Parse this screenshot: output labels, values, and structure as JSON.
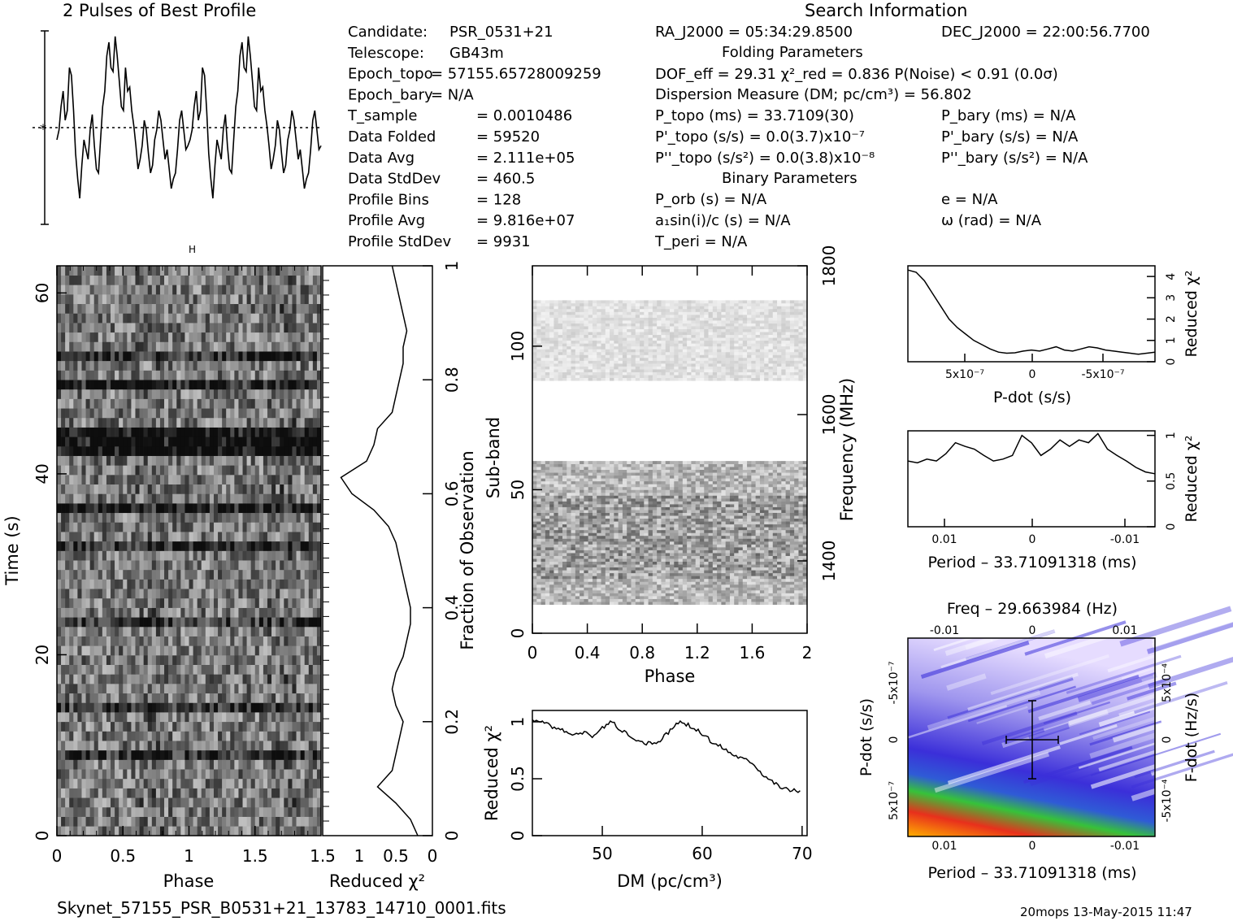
{
  "title_profile": "2 Pulses of Best Profile",
  "title_search": "Search Information",
  "title_folding": "Folding Parameters",
  "title_binary": "Binary Parameters",
  "info_left": [
    {
      "label": "Candidate:",
      "value": "PSR_0531+21"
    },
    {
      "label": "Telescope:",
      "value": "GB43m"
    },
    {
      "label": "Epoch_topo",
      "value": "= 57155.65728009259"
    },
    {
      "label": "Epoch_bary",
      "value": "= N/A"
    },
    {
      "label": "T_sample",
      "value": "0.0010486"
    },
    {
      "label": "Data Folded",
      "value": "59520"
    },
    {
      "label": "Data Avg",
      "value": "2.111e+05"
    },
    {
      "label": "Data StdDev",
      "value": "460.5"
    },
    {
      "label": "Profile Bins",
      "value": "128"
    },
    {
      "label": "Profile Avg",
      "value": "9.816e+07"
    },
    {
      "label": "Profile StdDev",
      "value": "9931"
    }
  ],
  "info_mid": {
    "ra": "RA_J2000 = 05:34:29.8500",
    "dof": "DOF_eff = 29.31  χ²_red = 0.836  P(Noise) < 0.91  (0.0σ)",
    "dm": "Dispersion Measure (DM; pc/cm³) = 56.802",
    "p_topo": "P_topo (ms) = 33.7109(30)",
    "pd_topo": "P'_topo (s/s) = 0.0(3.7)x10⁻⁷",
    "pdd_topo": "P''_topo (s/s²) = 0.0(3.8)x10⁻⁸",
    "p_orb": "P_orb (s) = N/A",
    "a1": "a₁sin(i)/c (s) = N/A",
    "t_peri": "T_peri = N/A"
  },
  "info_right": {
    "dec": "DEC_J2000 = 22:00:56.7700",
    "p_bary": "P_bary (ms) = N/A",
    "pd_bary": "P'_bary (s/s) = N/A",
    "pdd_bary": "P''_bary (s/s²) = N/A",
    "e": "e = N/A",
    "omega": "ω (rad) = N/A"
  },
  "labels": {
    "phase": "Phase",
    "time": "Time (s)",
    "reduced_chi2": "Reduced χ²",
    "fraction": "Fraction of Observation",
    "subband": "Sub-band",
    "frequency": "Frequency (MHz)",
    "dm_axis": "DM (pc/cm³)",
    "pdot": "P-dot (s/s)",
    "period_offset": "Period – 33.71091318 (ms)",
    "freq_title": "Freq – 29.663984 (Hz)",
    "fdot": "F-dot (Hz/s)"
  },
  "footer": {
    "filename": "Skynet_57155_PSR_B0531+21_13783_14710_0001.fits",
    "stamp": "20mops 13-May-2015 11:47"
  },
  "colors": {
    "ppdot_low": "#3b2fd9",
    "ppdot_mid": "#c9c0f0",
    "ppdot_high": "#e8301c",
    "greyscale_dark": "#111111"
  },
  "chart_data": [
    {
      "type": "line",
      "name": "profile",
      "xlabel": "",
      "ylabel": "",
      "x_range": [
        0,
        2
      ],
      "samples": [
        0.45,
        0.5,
        0.62,
        0.7,
        0.55,
        0.6,
        0.82,
        0.78,
        0.6,
        0.38,
        0.25,
        0.15,
        0.32,
        0.45,
        0.4,
        0.35,
        0.5,
        0.58,
        0.42,
        0.3,
        0.28,
        0.45,
        0.62,
        0.7,
        0.88,
        0.95,
        0.82,
        0.8,
        0.98,
        0.88,
        0.75,
        0.62,
        0.6,
        0.82,
        0.7,
        0.72,
        0.6,
        0.52,
        0.42,
        0.3,
        0.35,
        0.42,
        0.55,
        0.5,
        0.38,
        0.28,
        0.32,
        0.45,
        0.5,
        0.6,
        0.55,
        0.45,
        0.35,
        0.4,
        0.3,
        0.2,
        0.25,
        0.28,
        0.4,
        0.55,
        0.6,
        0.5,
        0.4,
        0.42,
        0.45,
        0.5,
        0.62,
        0.7,
        0.55,
        0.6,
        0.82,
        0.78,
        0.6,
        0.38,
        0.25,
        0.15,
        0.32,
        0.45,
        0.4,
        0.35,
        0.5,
        0.58,
        0.42,
        0.3,
        0.28,
        0.45,
        0.62,
        0.7,
        0.88,
        0.95,
        0.82,
        0.8,
        0.98,
        0.88,
        0.75,
        0.62,
        0.6,
        0.82,
        0.7,
        0.72,
        0.6,
        0.52,
        0.42,
        0.3,
        0.35,
        0.42,
        0.55,
        0.5,
        0.38,
        0.28,
        0.32,
        0.45,
        0.5,
        0.6,
        0.55,
        0.45,
        0.35,
        0.4,
        0.3,
        0.2,
        0.25,
        0.28,
        0.4,
        0.55,
        0.6,
        0.5,
        0.4,
        0.42
      ]
    },
    {
      "type": "heatmap",
      "name": "time-phase",
      "xlabel": "Phase",
      "ylabel": "Time (s)",
      "xlim": [
        0,
        2
      ],
      "ylim": [
        0,
        63
      ],
      "x_ticks": [
        "0",
        "0.5",
        "1",
        "1.5"
      ],
      "y_ticks": [
        "0",
        "20",
        "40",
        "60"
      ]
    },
    {
      "type": "line",
      "name": "time-chi2",
      "xlabel": "Reduced χ²",
      "ylabel": "Fraction of Observation",
      "x_ticks": [
        "1.5",
        "1",
        "0.5",
        "0"
      ],
      "y_ticks": [
        "0",
        "0.2",
        "0.4",
        "0.6",
        "0.8",
        "1"
      ],
      "x": [
        0.2,
        0.3,
        0.5,
        0.75,
        0.55,
        0.5,
        0.45,
        0.4,
        0.5,
        0.55,
        0.5,
        0.4,
        0.35,
        0.3,
        0.3,
        0.35,
        0.4,
        0.45,
        0.5,
        0.6,
        0.8,
        1.1,
        1.25,
        0.9,
        0.8,
        0.75,
        0.55,
        0.5,
        0.45,
        0.4,
        0.4,
        0.35,
        0.4,
        0.45,
        0.5,
        0.55
      ]
    },
    {
      "type": "heatmap",
      "name": "subband-phase",
      "xlabel": "Phase",
      "ylabel": "Sub-band",
      "xlim": [
        0,
        2
      ],
      "ylim": [
        0,
        128
      ],
      "x_ticks": [
        "0",
        "0.4",
        "0.8",
        "1.2",
        "1.6",
        "2"
      ],
      "y_ticks": [
        "0",
        "50",
        "100"
      ],
      "freq_ticks": [
        "1400",
        "1600",
        "1800"
      ]
    },
    {
      "type": "line",
      "name": "dm-chi2",
      "xlabel": "DM (pc/cm³)",
      "ylabel": "Reduced χ²",
      "xlim": [
        43,
        70.5
      ],
      "ylim": [
        0,
        1.1
      ],
      "x_ticks": [
        "50",
        "60",
        "70"
      ],
      "y_ticks": [
        "0",
        "0.5",
        "1"
      ],
      "x": [
        43,
        44,
        45,
        46,
        47,
        48,
        49,
        50,
        51,
        52,
        53,
        54,
        55,
        56,
        57,
        58,
        59,
        60,
        61,
        62,
        63,
        64,
        65,
        66,
        67,
        68,
        69,
        70
      ],
      "y": [
        1.0,
        1.02,
        0.95,
        0.92,
        0.88,
        0.9,
        0.88,
        0.95,
        1.0,
        0.92,
        0.85,
        0.82,
        0.8,
        0.85,
        0.95,
        1.0,
        0.95,
        0.9,
        0.82,
        0.78,
        0.72,
        0.68,
        0.65,
        0.55,
        0.48,
        0.42,
        0.4,
        0.38
      ]
    },
    {
      "type": "line",
      "name": "pdot-chi2",
      "xlabel": "P-dot (s/s)",
      "ylabel": "Reduced χ²",
      "ylim": [
        0,
        4.5
      ],
      "x_ticks": [
        "5x10⁻⁷",
        "0",
        "-5x10⁻⁷"
      ],
      "y_ticks": [
        "0",
        "1",
        "2",
        "3",
        "4"
      ],
      "y": [
        4.3,
        4.2,
        3.8,
        3.2,
        2.6,
        2.0,
        1.6,
        1.3,
        1.0,
        0.8,
        0.6,
        0.45,
        0.4,
        0.42,
        0.5,
        0.55,
        0.5,
        0.6,
        0.7,
        0.55,
        0.5,
        0.6,
        0.7,
        0.65,
        0.55,
        0.5,
        0.45,
        0.4,
        0.35,
        0.4,
        0.45
      ]
    },
    {
      "type": "line",
      "name": "period-chi2",
      "xlabel": "Period – 33.71091318 (ms)",
      "ylabel": "Reduced χ²",
      "ylim": [
        0,
        1.05
      ],
      "x_ticks": [
        "0.01",
        "0",
        "-0.01"
      ],
      "y_ticks": [
        "0",
        "0.5",
        "1"
      ],
      "y": [
        0.72,
        0.7,
        0.74,
        0.72,
        0.8,
        0.92,
        0.88,
        0.85,
        0.78,
        0.72,
        0.74,
        0.78,
        1.0,
        0.92,
        0.78,
        0.85,
        0.95,
        0.88,
        0.95,
        0.92,
        1.02,
        0.85,
        0.78,
        0.72,
        0.65,
        0.6,
        0.58
      ]
    },
    {
      "type": "heatmap",
      "name": "p-pdot",
      "xlabel": "Period – 33.71091318 (ms)",
      "ylabel": "P-dot (s/s)",
      "top_label": "Freq – 29.663984 (Hz)",
      "right_label": "F-dot (Hz/s)",
      "x_ticks": [
        "0.01",
        "0",
        "-0.01"
      ],
      "y_ticks": [
        "5x10⁻⁷",
        "0",
        "-5x10⁻⁷"
      ],
      "top_ticks": [
        "-0.01",
        "0",
        "0.01"
      ],
      "right_ticks": [
        "-5x10⁻⁴",
        "0",
        "5x10⁻⁴"
      ]
    }
  ]
}
